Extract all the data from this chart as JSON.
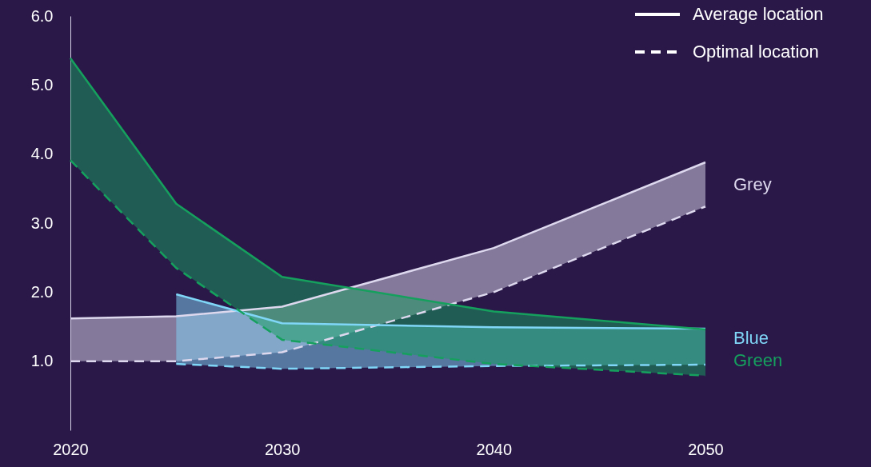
{
  "chart_data": {
    "type": "line",
    "x": [
      2020,
      2025,
      2030,
      2040,
      2050
    ],
    "series": [
      {
        "name": "Grey",
        "color": "#ddd8ee",
        "line_style": "solid",
        "values": [
          1.62,
          1.65,
          1.79,
          2.64,
          3.88
        ],
        "lower": [
          1.0,
          1.0,
          1.13,
          2.0,
          3.24
        ],
        "upper": [
          1.62,
          1.65,
          1.79,
          2.64,
          3.88
        ]
      },
      {
        "color": "#ddd8ee",
        "line_style": "dashed",
        "values": [
          1.0,
          1.0,
          1.13,
          2.0,
          3.24
        ]
      },
      {
        "name": "Blue",
        "color": "#7fd6f7",
        "line_style": "solid",
        "values": [
          null,
          1.97,
          1.55,
          1.49,
          1.47
        ],
        "lower": [
          null,
          0.96,
          0.89,
          0.93,
          0.95
        ],
        "upper": [
          null,
          1.97,
          1.55,
          1.49,
          1.47
        ]
      },
      {
        "color": "#7fd6f7",
        "line_style": "dashed",
        "values": [
          null,
          0.96,
          0.89,
          0.93,
          0.95
        ]
      },
      {
        "name": "Green",
        "color": "#16a05e",
        "line_style": "solid",
        "values": [
          5.39,
          3.28,
          2.22,
          1.72,
          1.46
        ],
        "lower": [
          3.91,
          2.35,
          1.31,
          0.96,
          0.79
        ],
        "upper": [
          5.39,
          3.28,
          2.22,
          1.72,
          1.46
        ]
      },
      {
        "color": "#16a05e",
        "line_style": "dashed",
        "values": [
          3.91,
          2.35,
          1.31,
          0.96,
          0.79
        ]
      }
    ],
    "xlim": [
      2020,
      2050
    ],
    "xticks": [
      2020,
      2030,
      2040,
      2050
    ],
    "ylim": [
      0,
      6
    ],
    "yticks": [
      {
        "value": 1,
        "label": "1.0"
      },
      {
        "value": 2,
        "label": "2.0"
      },
      {
        "value": 3,
        "label": "3.0"
      },
      {
        "value": 4,
        "label": "4.0"
      },
      {
        "value": 5,
        "label": "5.0"
      },
      {
        "value": 6,
        "label": "6.0"
      }
    ],
    "annotations": [
      "Average location",
      "Optimal location"
    ]
  }
}
